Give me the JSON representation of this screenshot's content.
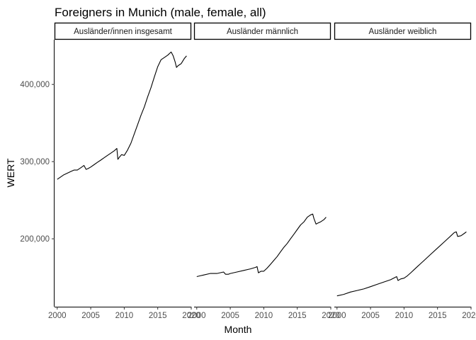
{
  "chart_data": {
    "type": "line",
    "title": "Foreigners in Munich (male, female, all)",
    "xlabel": "Month",
    "ylabel": "WERT",
    "xlim": [
      1999.6,
      2020.0
    ],
    "ylim": [
      112000,
      458000
    ],
    "x_ticks": [
      2000,
      2005,
      2010,
      2015,
      2020
    ],
    "x_tick_labels": [
      "2000",
      "2005",
      "2010",
      "2015",
      "2020"
    ],
    "y_ticks": [
      200000,
      300000,
      400000
    ],
    "y_tick_labels": [
      "200,000",
      "300,000",
      "400,000"
    ],
    "grid": false,
    "legend": "none",
    "facets": [
      {
        "label": "Ausländer/innen insgesamt",
        "series": {
          "x": [
            2000.0,
            2000.5,
            2001.0,
            2001.5,
            2002.0,
            2002.5,
            2003.0,
            2003.5,
            2004.0,
            2004.3,
            2004.6,
            2005.0,
            2005.5,
            2006.0,
            2006.5,
            2007.0,
            2007.5,
            2008.0,
            2008.5,
            2008.9,
            2009.05,
            2009.3,
            2009.6,
            2010.0,
            2010.5,
            2011.0,
            2011.5,
            2012.0,
            2012.5,
            2013.0,
            2013.5,
            2014.0,
            2014.5,
            2015.0,
            2015.5,
            2016.0,
            2016.5,
            2017.0,
            2017.3,
            2017.6,
            2017.8,
            2018.0,
            2018.5,
            2019.0,
            2019.3
          ],
          "y": [
            277000,
            280000,
            283000,
            285000,
            287000,
            289000,
            289000,
            292000,
            295000,
            290000,
            291000,
            293000,
            296000,
            299000,
            302000,
            305000,
            308000,
            311000,
            314000,
            317000,
            303000,
            306000,
            309000,
            308000,
            315000,
            324000,
            336000,
            348000,
            360000,
            371000,
            384000,
            396000,
            410000,
            423000,
            432000,
            435000,
            438000,
            442000,
            437000,
            429000,
            422000,
            424000,
            427000,
            434000,
            437000
          ]
        }
      },
      {
        "label": "Ausländer männlich",
        "series": {
          "x": [
            2000.0,
            2000.5,
            2001.0,
            2002.0,
            2003.0,
            2004.0,
            2004.3,
            2004.7,
            2005.0,
            2006.0,
            2007.0,
            2008.0,
            2008.8,
            2009.0,
            2009.2,
            2009.6,
            2010.0,
            2010.5,
            2011.0,
            2011.5,
            2012.0,
            2012.5,
            2013.0,
            2013.5,
            2014.0,
            2014.5,
            2015.0,
            2015.5,
            2016.0,
            2016.5,
            2017.0,
            2017.3,
            2017.5,
            2017.8,
            2018.0,
            2018.5,
            2019.0,
            2019.3
          ],
          "y": [
            151000,
            152000,
            153000,
            155000,
            155000,
            157000,
            154000,
            154000,
            155000,
            157000,
            159000,
            161000,
            163000,
            164000,
            156000,
            158000,
            158000,
            162000,
            167000,
            172000,
            177000,
            183000,
            189000,
            194000,
            200000,
            206000,
            212000,
            218000,
            222000,
            228000,
            231000,
            232000,
            226000,
            219000,
            220000,
            222000,
            225000,
            228000
          ]
        }
      },
      {
        "label": "Ausländer weiblich",
        "series": {
          "x": [
            2000.0,
            2001.0,
            2002.0,
            2003.0,
            2004.0,
            2005.0,
            2006.0,
            2007.0,
            2008.0,
            2008.9,
            2009.1,
            2009.5,
            2010.0,
            2010.5,
            2011.0,
            2011.5,
            2012.0,
            2012.5,
            2013.0,
            2014.0,
            2015.0,
            2016.0,
            2017.0,
            2017.5,
            2017.8,
            2018.0,
            2018.5,
            2019.0,
            2019.3
          ],
          "y": [
            126000,
            128000,
            131000,
            133000,
            135000,
            138000,
            141000,
            144000,
            147000,
            151000,
            146000,
            148000,
            149000,
            152000,
            156000,
            160000,
            164000,
            168000,
            172000,
            180000,
            188000,
            196000,
            204000,
            208000,
            209000,
            203000,
            204000,
            207000,
            209000
          ]
        }
      }
    ]
  }
}
